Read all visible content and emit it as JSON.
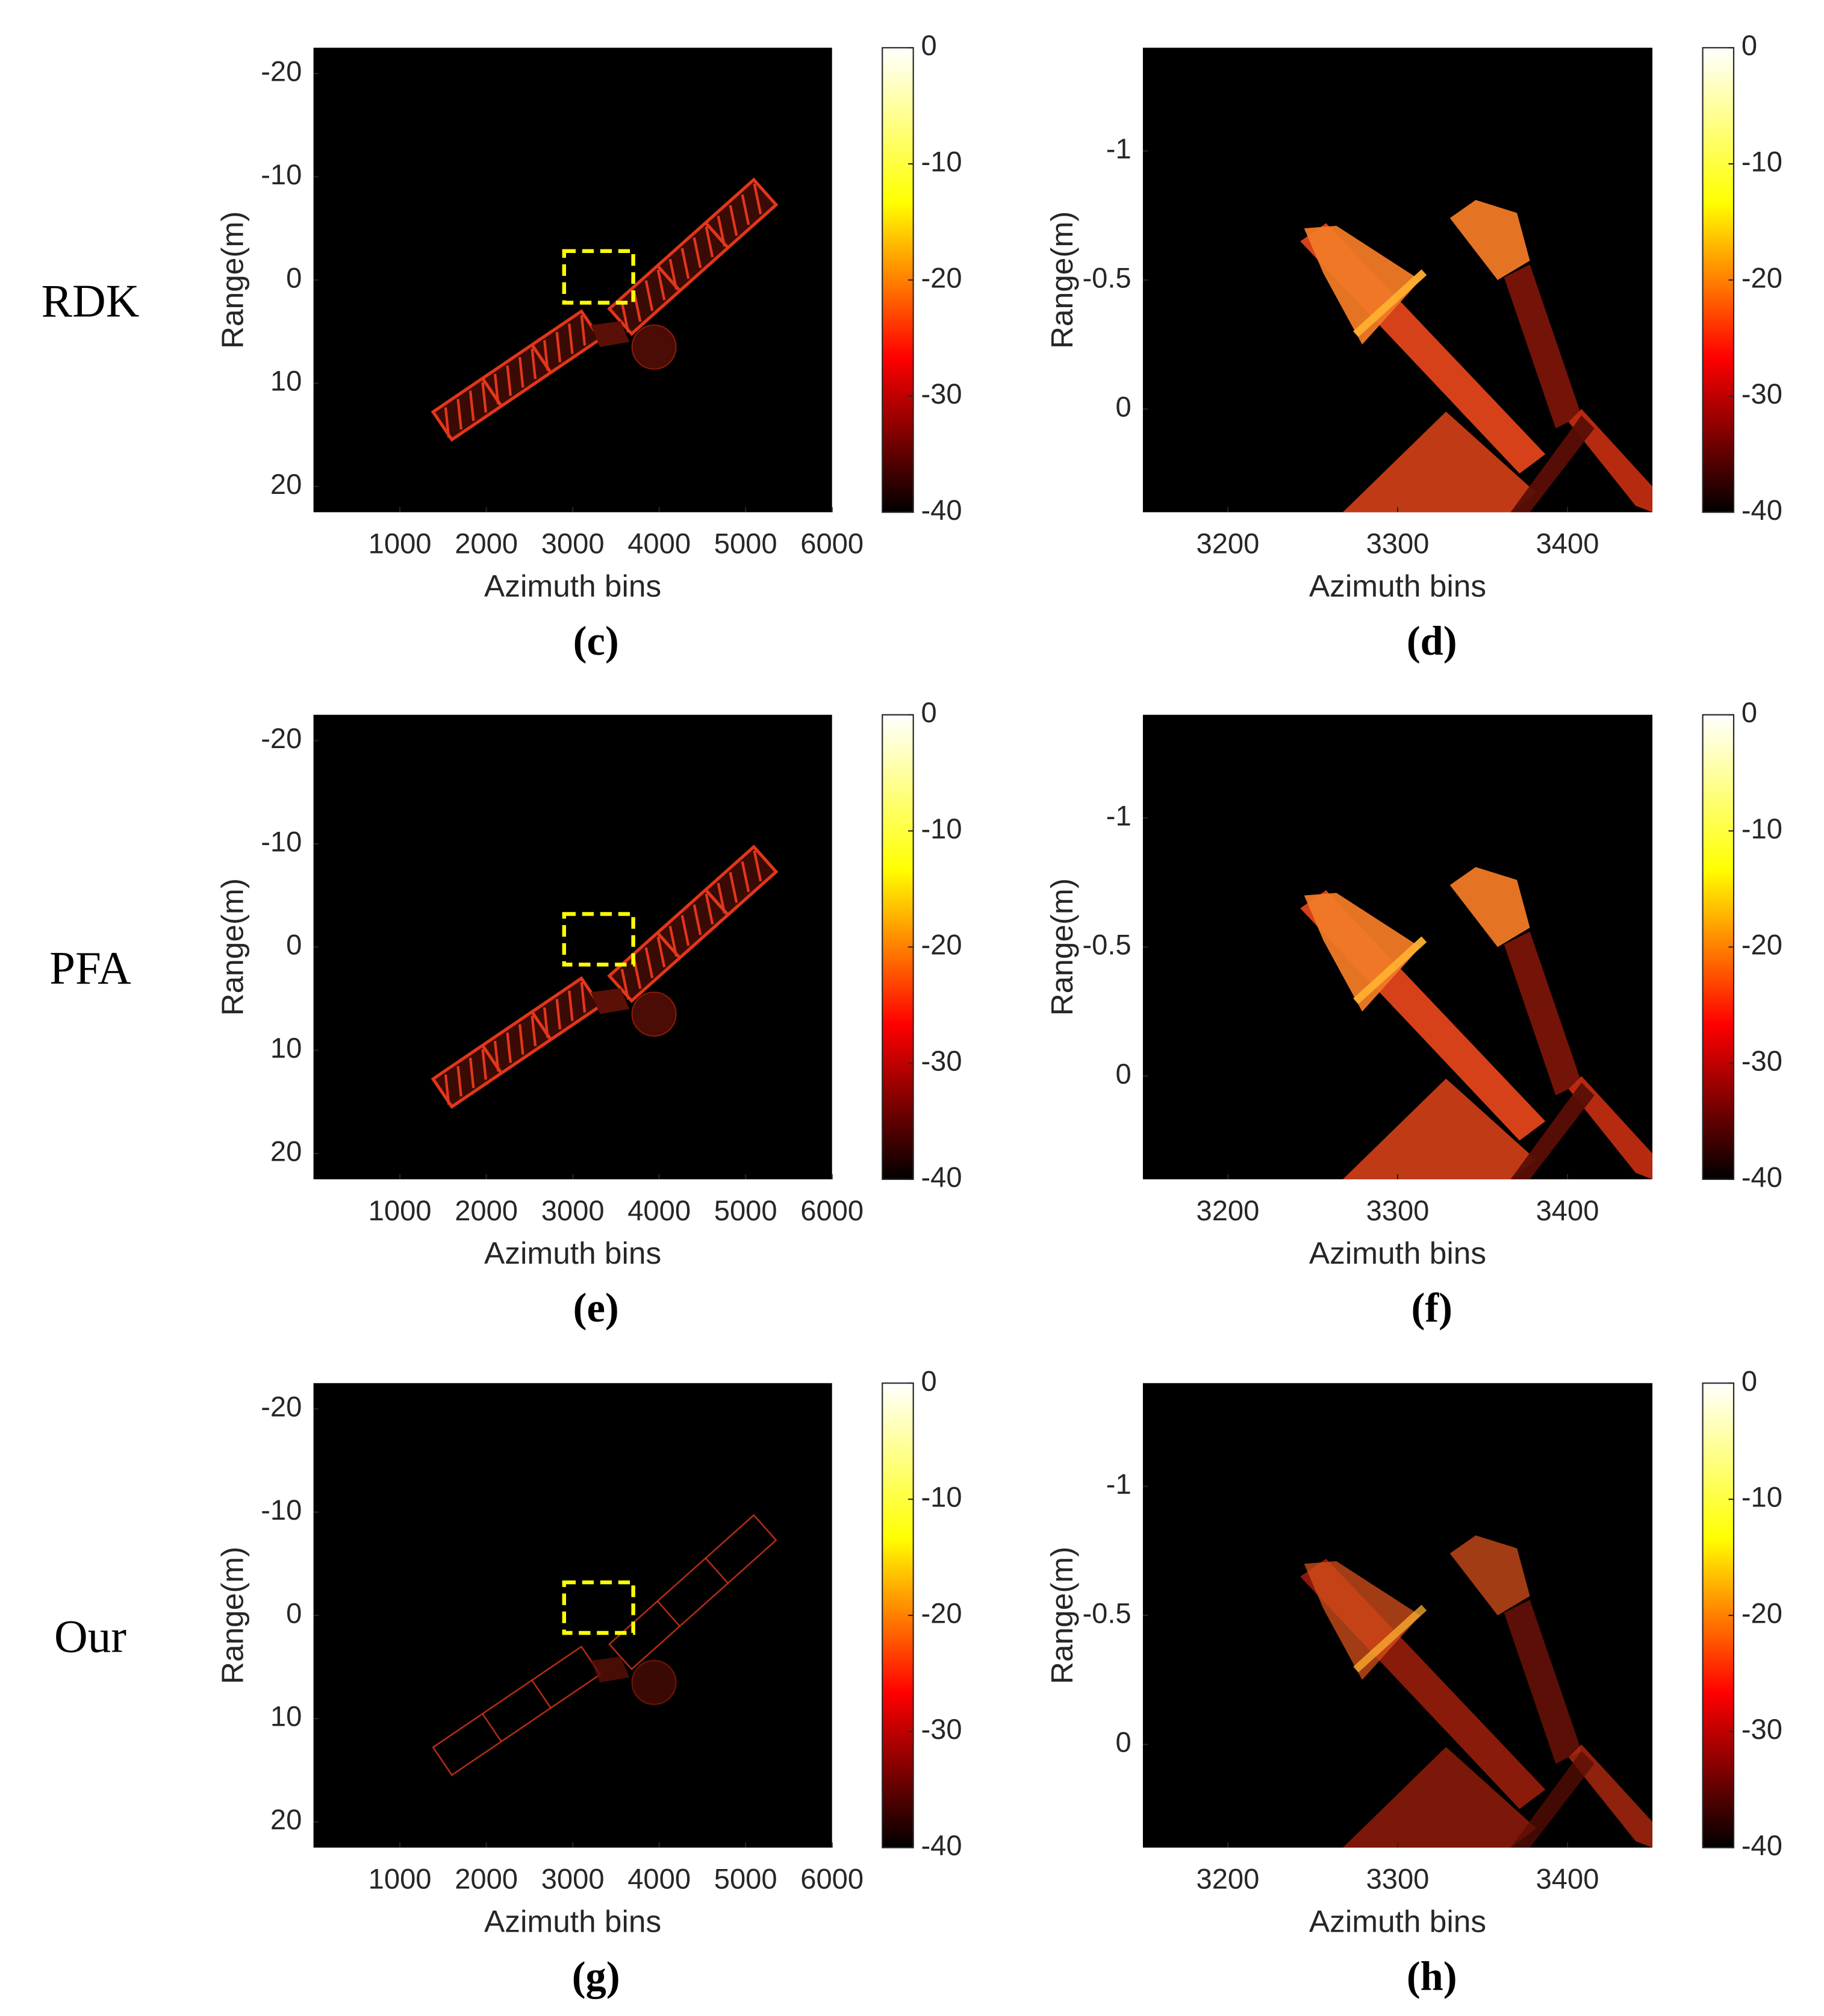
{
  "chart_data": [
    {
      "type": "heatmap",
      "row_label": "RDK",
      "panel_label": "(c)",
      "xlabel": "Azimuth bins",
      "ylabel": "Range(m)",
      "xlim": [
        0,
        6000
      ],
      "xticks": [
        1000,
        2000,
        3000,
        4000,
        5000,
        6000
      ],
      "ylim": [
        -22.5,
        22.5
      ],
      "yticks": [
        -20,
        -10,
        0,
        10,
        20
      ],
      "y_reversed": true,
      "clim": [
        -40,
        0
      ],
      "cticks": [
        0,
        -10,
        -20,
        -30,
        -40
      ],
      "colormap": [
        "#000000",
        "#ff0000",
        "#ffff00",
        "#ffffff"
      ],
      "highlight": {
        "x": [
          2900,
          3700
        ],
        "y": [
          -2.8,
          2.2
        ],
        "color": "#ffff00"
      }
    },
    {
      "type": "heatmap",
      "panel_label": "(d)",
      "xlabel": "Azimuth bins",
      "ylabel": "Range(m)",
      "xlim": [
        3150,
        3450
      ],
      "xticks": [
        3200,
        3300,
        3400
      ],
      "ylim": [
        -1.4,
        0.4
      ],
      "yticks": [
        -1,
        -0.5,
        0
      ],
      "y_reversed": true,
      "clim": [
        -40,
        0
      ],
      "cticks": [
        0,
        -10,
        -20,
        -30,
        -40
      ],
      "colormap": [
        "#000000",
        "#ff0000",
        "#ffff00",
        "#ffffff"
      ]
    },
    {
      "type": "heatmap",
      "row_label": "PFA",
      "panel_label": "(e)",
      "xlabel": "Azimuth bins",
      "ylabel": "Range(m)",
      "xlim": [
        0,
        6000
      ],
      "xticks": [
        1000,
        2000,
        3000,
        4000,
        5000,
        6000
      ],
      "ylim": [
        -22.5,
        22.5
      ],
      "yticks": [
        -20,
        -10,
        0,
        10,
        20
      ],
      "y_reversed": true,
      "clim": [
        -40,
        0
      ],
      "cticks": [
        0,
        -10,
        -20,
        -30,
        -40
      ],
      "colormap": [
        "#000000",
        "#ff0000",
        "#ffff00",
        "#ffffff"
      ],
      "highlight": {
        "x": [
          2900,
          3700
        ],
        "y": [
          -3.2,
          1.7
        ],
        "color": "#ffff00"
      }
    },
    {
      "type": "heatmap",
      "panel_label": "(f)",
      "xlabel": "Azimuth bins",
      "ylabel": "Range(m)",
      "xlim": [
        3150,
        3450
      ],
      "xticks": [
        3200,
        3300,
        3400
      ],
      "ylim": [
        -1.4,
        0.4
      ],
      "yticks": [
        -1,
        -0.5,
        0
      ],
      "y_reversed": true,
      "clim": [
        -40,
        0
      ],
      "cticks": [
        0,
        -10,
        -20,
        -30,
        -40
      ],
      "colormap": [
        "#000000",
        "#ff0000",
        "#ffff00",
        "#ffffff"
      ]
    },
    {
      "type": "heatmap",
      "row_label": "Our",
      "panel_label": "(g)",
      "xlabel": "Azimuth bins",
      "ylabel": "Range(m)",
      "xlim": [
        0,
        6000
      ],
      "xticks": [
        1000,
        2000,
        3000,
        4000,
        5000,
        6000
      ],
      "ylim": [
        -22.5,
        22.5
      ],
      "yticks": [
        -20,
        -10,
        0,
        10,
        20
      ],
      "y_reversed": true,
      "clim": [
        -40,
        0
      ],
      "cticks": [
        0,
        -10,
        -20,
        -30,
        -40
      ],
      "colormap": [
        "#000000",
        "#ff0000",
        "#ffff00",
        "#ffffff"
      ],
      "highlight": {
        "x": [
          2900,
          3700
        ],
        "y": [
          -3.2,
          1.7
        ],
        "color": "#ffff00"
      }
    },
    {
      "type": "heatmap",
      "panel_label": "(h)",
      "xlabel": "Azimuth bins",
      "ylabel": "Range(m)",
      "xlim": [
        3150,
        3450
      ],
      "xticks": [
        3200,
        3300,
        3400
      ],
      "ylim": [
        -1.4,
        0.4
      ],
      "yticks": [
        -1,
        -0.5,
        0
      ],
      "y_reversed": true,
      "clim": [
        -40,
        0
      ],
      "cticks": [
        0,
        -10,
        -20,
        -30,
        -40
      ],
      "colormap": [
        "#000000",
        "#ff0000",
        "#ffff00",
        "#ffffff"
      ]
    }
  ]
}
